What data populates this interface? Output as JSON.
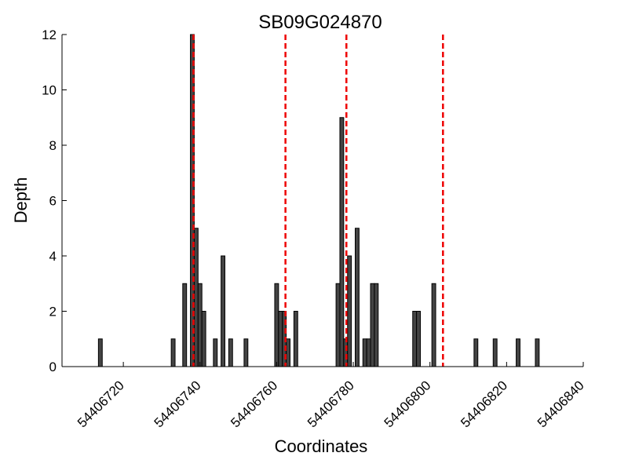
{
  "chart_data": {
    "type": "bar",
    "title": "SB09G024870",
    "xlabel": "Coordinates",
    "ylabel": "Depth",
    "xlim": [
      54406704,
      54406840
    ],
    "ylim": [
      0,
      12
    ],
    "xticks": [
      54406720,
      54406740,
      54406760,
      54406780,
      54406800,
      54406820,
      54406840
    ],
    "xtick_labels": [
      "54406720",
      "54406740",
      "54406760",
      "54406780",
      "54406800",
      "54406820",
      "54406840"
    ],
    "yticks": [
      0,
      2,
      4,
      6,
      8,
      10,
      12
    ],
    "ytick_labels": [
      "0",
      "2",
      "4",
      "6",
      "8",
      "10",
      "12"
    ],
    "grid": false,
    "bar_color": "#444444",
    "marker_color": "#ee0000",
    "series": [
      {
        "name": "depth",
        "x": [
          54406714,
          54406733,
          54406736,
          54406738,
          54406739,
          54406740,
          54406741,
          54406744,
          54406746,
          54406748,
          54406752,
          54406760,
          54406761,
          54406762,
          54406763,
          54406765,
          54406776,
          54406777,
          54406778,
          54406779,
          54406781,
          54406783,
          54406784,
          54406785,
          54406786,
          54406796,
          54406797,
          54406801,
          54406812,
          54406817,
          54406823,
          54406828
        ],
        "values": [
          1,
          1,
          3,
          12,
          5,
          3,
          2,
          1,
          4,
          1,
          1,
          3,
          2,
          2,
          1,
          2,
          3,
          9,
          1,
          4,
          5,
          1,
          1,
          3,
          3,
          2,
          2,
          3,
          1,
          1,
          1,
          1
        ]
      }
    ],
    "vlines": [
      54406738.3,
      54406762.3,
      54406778.2,
      54406803.4
    ]
  }
}
